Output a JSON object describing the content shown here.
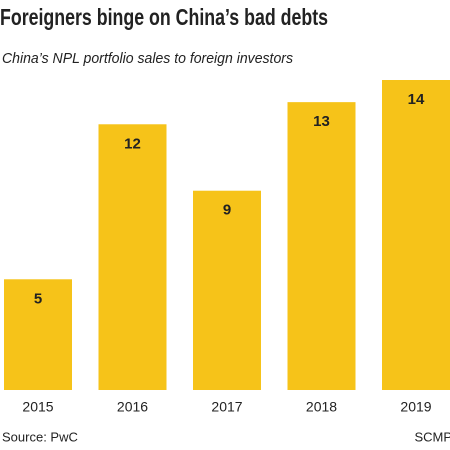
{
  "chart_data": {
    "type": "bar",
    "title": "Foreigners binge on China’s bad debts",
    "subtitle": "China’s NPL portfolio sales to foreign investors",
    "categories": [
      "2015",
      "2016",
      "2017",
      "2018",
      "2019"
    ],
    "values": [
      5,
      12,
      9,
      13,
      14
    ],
    "color": "#f6c319",
    "source": "Source: PwC",
    "credit": "SCMP"
  }
}
